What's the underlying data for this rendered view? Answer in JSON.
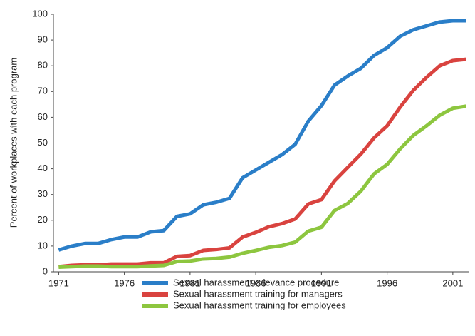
{
  "chart_data": {
    "type": "line",
    "y_label": "Percent of workplaces with each program",
    "x": [
      1971,
      1972,
      1973,
      1974,
      1975,
      1976,
      1977,
      1978,
      1979,
      1980,
      1981,
      1982,
      1983,
      1984,
      1985,
      1986,
      1987,
      1988,
      1989,
      1990,
      1991,
      1992,
      1993,
      1994,
      1995,
      1996,
      1997,
      1998,
      1999,
      2000,
      2001,
      2002
    ],
    "series": [
      {
        "name": "Sexual harassment grievance procedure",
        "color": "#2a7ec8",
        "values": [
          8.5,
          10,
          11,
          11,
          12.5,
          13.5,
          13.5,
          15.5,
          16,
          21.5,
          22.5,
          26,
          27,
          28.5,
          36.5,
          39.5,
          42.5,
          45.5,
          49.5,
          58.5,
          64.5,
          72.5,
          76,
          79,
          84,
          87,
          91.5,
          94,
          95.5,
          97,
          97.5,
          97.5
        ]
      },
      {
        "name": "Sexual harassment training for managers",
        "color": "#d9433f",
        "values": [
          2,
          2.5,
          2.7,
          2.7,
          3,
          3,
          3,
          3.5,
          3.5,
          6,
          6.3,
          8.3,
          8.7,
          9.3,
          13.5,
          15.3,
          17.5,
          18.7,
          20.5,
          26.3,
          28,
          35.3,
          40.5,
          45.7,
          52,
          56.7,
          64,
          70.5,
          75.5,
          80,
          82,
          82.5
        ]
      },
      {
        "name": "Sexual harassment training for employees",
        "color": "#8dc63f",
        "values": [
          1.8,
          2,
          2.2,
          2.2,
          2,
          2,
          2,
          2.3,
          2.5,
          4,
          4.2,
          5,
          5.2,
          5.7,
          7.2,
          8.3,
          9.5,
          10.2,
          11.5,
          15.8,
          17.3,
          23.8,
          26.5,
          31.3,
          38,
          41.7,
          47.8,
          53,
          56.7,
          60.8,
          63.5,
          64.3
        ]
      }
    ],
    "xlim": [
      1970.6,
      2002.2
    ],
    "xticks": [
      1971,
      1976,
      1981,
      1986,
      1991,
      1996,
      2001
    ],
    "ylim": [
      0,
      100
    ],
    "yticks": [
      0,
      10,
      20,
      30,
      40,
      50,
      60,
      70,
      80,
      90,
      100
    ],
    "grid": false,
    "legend": "bottom"
  }
}
